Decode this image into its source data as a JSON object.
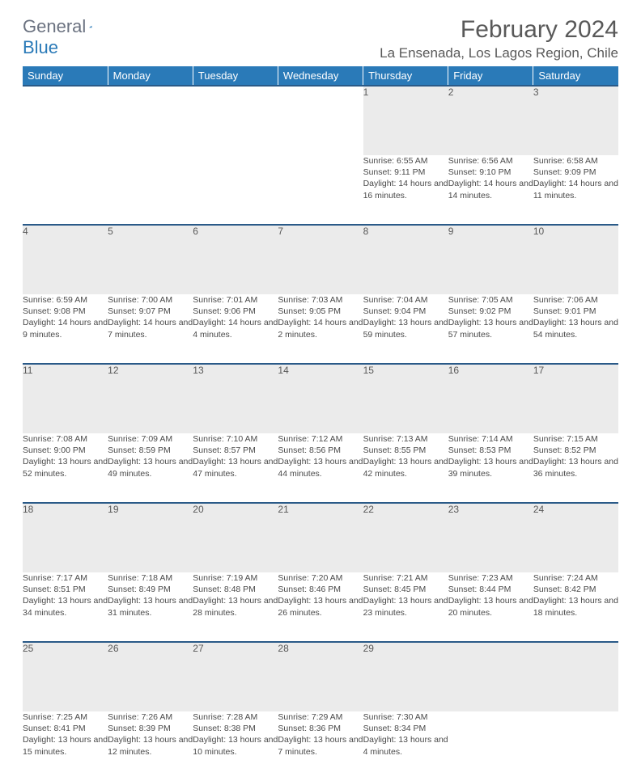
{
  "logo": {
    "text1": "General",
    "text2": "Blue"
  },
  "title": "February 2024",
  "location": "La Ensenada, Los Lagos Region, Chile",
  "colors": {
    "header_bg": "#2a7ab8",
    "header_border": "#2a5a88",
    "daynum_bg": "#ebebeb",
    "text": "#595959",
    "body_text": "#4a4a4a"
  },
  "weekdays": [
    "Sunday",
    "Monday",
    "Tuesday",
    "Wednesday",
    "Thursday",
    "Friday",
    "Saturday"
  ],
  "weeks": [
    [
      null,
      null,
      null,
      null,
      {
        "n": "1",
        "sr": "6:55 AM",
        "ss": "9:11 PM",
        "dl": "14 hours and 16 minutes."
      },
      {
        "n": "2",
        "sr": "6:56 AM",
        "ss": "9:10 PM",
        "dl": "14 hours and 14 minutes."
      },
      {
        "n": "3",
        "sr": "6:58 AM",
        "ss": "9:09 PM",
        "dl": "14 hours and 11 minutes."
      }
    ],
    [
      {
        "n": "4",
        "sr": "6:59 AM",
        "ss": "9:08 PM",
        "dl": "14 hours and 9 minutes."
      },
      {
        "n": "5",
        "sr": "7:00 AM",
        "ss": "9:07 PM",
        "dl": "14 hours and 7 minutes."
      },
      {
        "n": "6",
        "sr": "7:01 AM",
        "ss": "9:06 PM",
        "dl": "14 hours and 4 minutes."
      },
      {
        "n": "7",
        "sr": "7:03 AM",
        "ss": "9:05 PM",
        "dl": "14 hours and 2 minutes."
      },
      {
        "n": "8",
        "sr": "7:04 AM",
        "ss": "9:04 PM",
        "dl": "13 hours and 59 minutes."
      },
      {
        "n": "9",
        "sr": "7:05 AM",
        "ss": "9:02 PM",
        "dl": "13 hours and 57 minutes."
      },
      {
        "n": "10",
        "sr": "7:06 AM",
        "ss": "9:01 PM",
        "dl": "13 hours and 54 minutes."
      }
    ],
    [
      {
        "n": "11",
        "sr": "7:08 AM",
        "ss": "9:00 PM",
        "dl": "13 hours and 52 minutes."
      },
      {
        "n": "12",
        "sr": "7:09 AM",
        "ss": "8:59 PM",
        "dl": "13 hours and 49 minutes."
      },
      {
        "n": "13",
        "sr": "7:10 AM",
        "ss": "8:57 PM",
        "dl": "13 hours and 47 minutes."
      },
      {
        "n": "14",
        "sr": "7:12 AM",
        "ss": "8:56 PM",
        "dl": "13 hours and 44 minutes."
      },
      {
        "n": "15",
        "sr": "7:13 AM",
        "ss": "8:55 PM",
        "dl": "13 hours and 42 minutes."
      },
      {
        "n": "16",
        "sr": "7:14 AM",
        "ss": "8:53 PM",
        "dl": "13 hours and 39 minutes."
      },
      {
        "n": "17",
        "sr": "7:15 AM",
        "ss": "8:52 PM",
        "dl": "13 hours and 36 minutes."
      }
    ],
    [
      {
        "n": "18",
        "sr": "7:17 AM",
        "ss": "8:51 PM",
        "dl": "13 hours and 34 minutes."
      },
      {
        "n": "19",
        "sr": "7:18 AM",
        "ss": "8:49 PM",
        "dl": "13 hours and 31 minutes."
      },
      {
        "n": "20",
        "sr": "7:19 AM",
        "ss": "8:48 PM",
        "dl": "13 hours and 28 minutes."
      },
      {
        "n": "21",
        "sr": "7:20 AM",
        "ss": "8:46 PM",
        "dl": "13 hours and 26 minutes."
      },
      {
        "n": "22",
        "sr": "7:21 AM",
        "ss": "8:45 PM",
        "dl": "13 hours and 23 minutes."
      },
      {
        "n": "23",
        "sr": "7:23 AM",
        "ss": "8:44 PM",
        "dl": "13 hours and 20 minutes."
      },
      {
        "n": "24",
        "sr": "7:24 AM",
        "ss": "8:42 PM",
        "dl": "13 hours and 18 minutes."
      }
    ],
    [
      {
        "n": "25",
        "sr": "7:25 AM",
        "ss": "8:41 PM",
        "dl": "13 hours and 15 minutes."
      },
      {
        "n": "26",
        "sr": "7:26 AM",
        "ss": "8:39 PM",
        "dl": "13 hours and 12 minutes."
      },
      {
        "n": "27",
        "sr": "7:28 AM",
        "ss": "8:38 PM",
        "dl": "13 hours and 10 minutes."
      },
      {
        "n": "28",
        "sr": "7:29 AM",
        "ss": "8:36 PM",
        "dl": "13 hours and 7 minutes."
      },
      {
        "n": "29",
        "sr": "7:30 AM",
        "ss": "8:34 PM",
        "dl": "13 hours and 4 minutes."
      },
      null,
      null
    ]
  ],
  "labels": {
    "sunrise": "Sunrise: ",
    "sunset": "Sunset: ",
    "daylight": "Daylight: "
  }
}
